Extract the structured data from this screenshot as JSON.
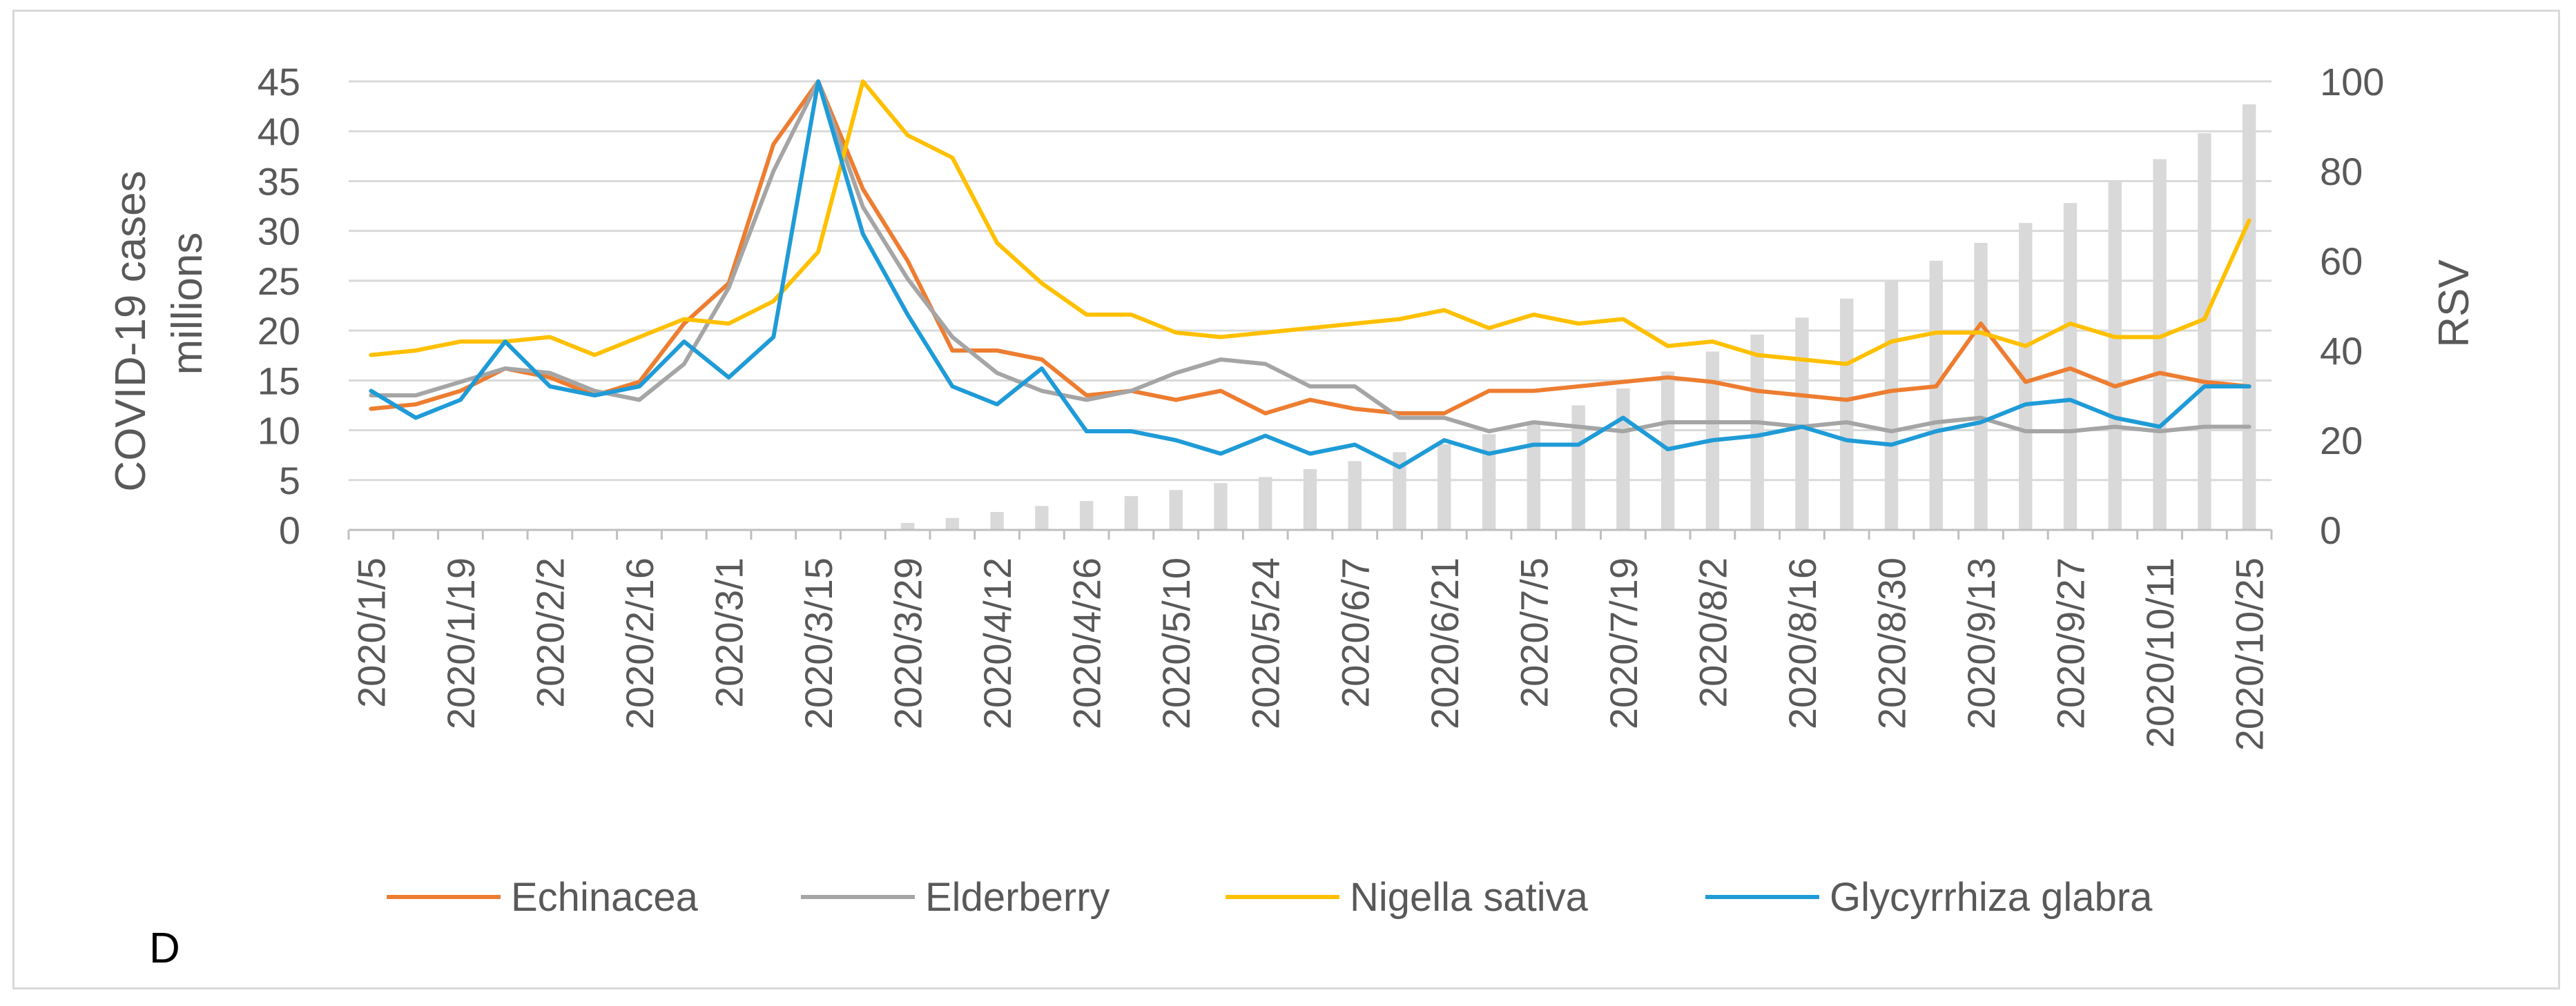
{
  "chart_data": {
    "type": "line",
    "panel_label": "D",
    "ylabel": "COVID-19 cases millions",
    "ylabel_lines": [
      "COVID-19 cases",
      "millions"
    ],
    "y2label": "RSV",
    "ylim": [
      0,
      45
    ],
    "y_ticks": [
      0,
      5,
      10,
      15,
      20,
      25,
      30,
      35,
      40,
      45
    ],
    "y2lim": [
      0,
      100
    ],
    "y2_ticks": [
      0,
      20,
      40,
      60,
      80,
      100
    ],
    "grid": true,
    "legend_position": "bottom",
    "x": [
      "2020/1/5",
      "2020/1/12",
      "2020/1/19",
      "2020/1/26",
      "2020/2/2",
      "2020/2/9",
      "2020/2/16",
      "2020/2/23",
      "2020/3/1",
      "2020/3/8",
      "2020/3/15",
      "2020/3/22",
      "2020/3/29",
      "2020/4/5",
      "2020/4/12",
      "2020/4/19",
      "2020/4/26",
      "2020/5/3",
      "2020/5/10",
      "2020/5/17",
      "2020/5/24",
      "2020/5/31",
      "2020/6/7",
      "2020/6/14",
      "2020/6/21",
      "2020/6/28",
      "2020/7/5",
      "2020/7/12",
      "2020/7/19",
      "2020/7/26",
      "2020/8/2",
      "2020/8/9",
      "2020/8/16",
      "2020/8/23",
      "2020/8/30",
      "2020/9/6",
      "2020/9/13",
      "2020/9/20",
      "2020/9/27",
      "2020/10/4",
      "2020/10/11",
      "2020/10/18",
      "2020/10/25"
    ],
    "x_tick_labels": [
      "2020/1/5",
      "2020/1/19",
      "2020/2/2",
      "2020/2/16",
      "2020/3/1",
      "2020/3/15",
      "2020/3/29",
      "2020/4/12",
      "2020/4/26",
      "2020/5/10",
      "2020/5/24",
      "2020/6/7",
      "2020/6/21",
      "2020/7/5",
      "2020/7/19",
      "2020/8/2",
      "2020/8/16",
      "2020/8/30",
      "2020/9/13",
      "2020/9/27",
      "2020/10/11",
      "2020/10/25"
    ],
    "bars": {
      "name": "COVID-19 cases",
      "axis": "left",
      "color": "#d9d9d9",
      "values": [
        0,
        0,
        0,
        0,
        0,
        0,
        0,
        0,
        0,
        0,
        0,
        0.1,
        0.7,
        1.2,
        1.8,
        2.4,
        2.9,
        3.4,
        4.0,
        4.7,
        5.3,
        6.1,
        6.9,
        7.8,
        8.6,
        9.6,
        10.9,
        12.5,
        14.2,
        15.9,
        17.9,
        19.6,
        21.3,
        23.2,
        25.1,
        27.0,
        28.8,
        30.8,
        32.8,
        34.9,
        37.2,
        39.8,
        42.7
      ]
    },
    "series": [
      {
        "name": "Echinacea",
        "color": "#ed7d31",
        "axis": "right",
        "values": [
          27,
          28,
          31,
          36,
          34,
          30,
          33,
          46,
          55,
          86,
          100,
          76,
          60,
          40,
          40,
          38,
          30,
          31,
          29,
          31,
          26,
          29,
          27,
          26,
          26,
          31,
          31,
          32,
          33,
          34,
          33,
          31,
          30,
          29,
          31,
          32,
          46,
          33,
          36,
          32,
          35,
          33,
          32
        ]
      },
      {
        "name": "Elderberry",
        "color": "#a5a5a5",
        "axis": "right",
        "values": [
          30,
          30,
          33,
          36,
          35,
          31,
          29,
          37,
          54,
          80,
          100,
          72,
          56,
          43,
          35,
          31,
          29,
          31,
          35,
          38,
          37,
          32,
          32,
          25,
          25,
          22,
          24,
          23,
          22,
          24,
          24,
          24,
          23,
          24,
          22,
          24,
          25,
          22,
          22,
          23,
          22,
          23,
          23
        ]
      },
      {
        "name": "Nigella sativa",
        "color": "#ffc000",
        "axis": "right",
        "values": [
          39,
          40,
          42,
          42,
          43,
          39,
          43,
          47,
          46,
          51,
          62,
          100,
          88,
          83,
          64,
          55,
          48,
          48,
          44,
          43,
          44,
          45,
          46,
          47,
          49,
          45,
          48,
          46,
          47,
          41,
          42,
          39,
          38,
          37,
          42,
          44,
          44,
          41,
          46,
          43,
          43,
          47,
          69
        ]
      },
      {
        "name": "Glycyrrhiza glabra",
        "color": "#1f9bd7",
        "axis": "right",
        "values": [
          31,
          25,
          29,
          42,
          32,
          30,
          32,
          42,
          34,
          43,
          100,
          66,
          48,
          32,
          28,
          36,
          22,
          22,
          20,
          17,
          21,
          17,
          19,
          14,
          20,
          17,
          19,
          19,
          25,
          18,
          20,
          21,
          23,
          20,
          19,
          22,
          24,
          28,
          29,
          25,
          23,
          32,
          32
        ]
      }
    ]
  }
}
